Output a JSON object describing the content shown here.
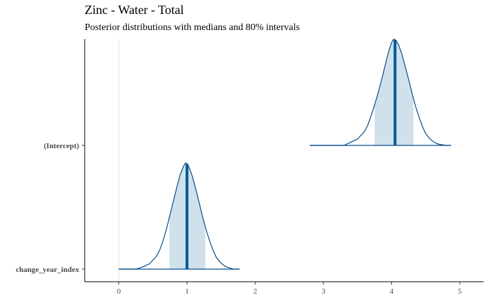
{
  "chart_data": {
    "type": "area",
    "title": "Zinc - Water - Total",
    "subtitle": "Posterior distributions with medians and 80% intervals",
    "xlabel": "",
    "ylabel": "",
    "xlim": [
      -0.5,
      5.35
    ],
    "x_ticks": [
      0,
      1,
      2,
      3,
      4,
      5
    ],
    "x_tick_labels": [
      "0",
      "1",
      "2",
      "3",
      "4",
      "5"
    ],
    "reference_line_x": 0,
    "grid": false,
    "legend": "none",
    "colors": {
      "line": "#084B8A",
      "fill": "#D1E1EC",
      "median": "#005B96",
      "axis": "#000000",
      "tick_text": "#4d4d4d",
      "reference": "#e0e0e0"
    },
    "parameters": [
      {
        "name": "(Intercept)",
        "range": [
          2.8,
          4.87
        ],
        "median": 4.05,
        "interval_80": [
          3.75,
          4.32
        ],
        "density_x": [
          2.8,
          3.3,
          3.4,
          3.5,
          3.6,
          3.65,
          3.7,
          3.75,
          3.8,
          3.85,
          3.9,
          3.95,
          4.0,
          4.03,
          4.06,
          4.1,
          4.15,
          4.2,
          4.25,
          4.3,
          4.35,
          4.4,
          4.45,
          4.5,
          4.55,
          4.6,
          4.65,
          4.7,
          4.75,
          4.8,
          4.87
        ],
        "density_y": [
          0.0,
          0.0,
          0.03,
          0.06,
          0.13,
          0.19,
          0.28,
          0.38,
          0.49,
          0.61,
          0.74,
          0.87,
          0.97,
          1.0,
          0.99,
          0.95,
          0.86,
          0.74,
          0.62,
          0.49,
          0.37,
          0.27,
          0.18,
          0.11,
          0.07,
          0.04,
          0.02,
          0.01,
          0.005,
          0.0,
          0.0
        ]
      },
      {
        "name": "change_year_index",
        "range": [
          0.0,
          1.77
        ],
        "median": 1.0,
        "interval_80": [
          0.74,
          1.27
        ],
        "density_x": [
          0.0,
          0.25,
          0.35,
          0.45,
          0.55,
          0.6,
          0.65,
          0.7,
          0.75,
          0.8,
          0.85,
          0.9,
          0.95,
          0.98,
          1.0,
          1.03,
          1.08,
          1.13,
          1.18,
          1.23,
          1.28,
          1.33,
          1.38,
          1.43,
          1.48,
          1.53,
          1.58,
          1.63,
          1.68,
          1.77
        ],
        "density_y": [
          0.0,
          0.0,
          0.02,
          0.05,
          0.12,
          0.18,
          0.27,
          0.38,
          0.51,
          0.64,
          0.77,
          0.89,
          0.97,
          1.0,
          0.99,
          0.96,
          0.87,
          0.75,
          0.62,
          0.49,
          0.37,
          0.27,
          0.18,
          0.11,
          0.07,
          0.04,
          0.02,
          0.01,
          0.0,
          0.0
        ]
      }
    ]
  }
}
